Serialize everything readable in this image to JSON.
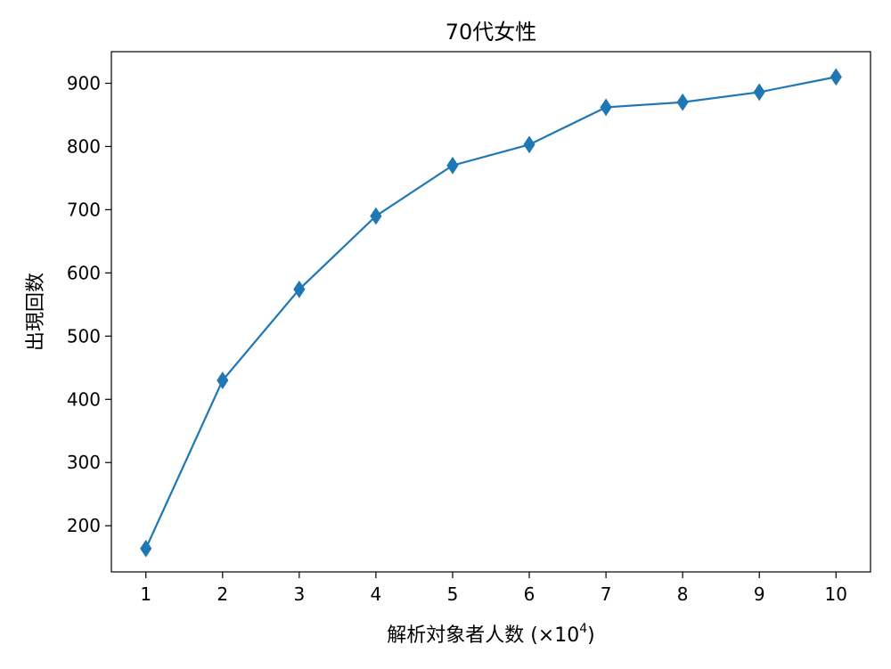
{
  "chart_data": {
    "type": "line",
    "title": "70代女性",
    "xlabel": "解析対象者人数 (×10",
    "xlabel_sup": "4",
    "xlabel_suffix": ")",
    "ylabel": "出現回数",
    "x": [
      1,
      2,
      3,
      4,
      5,
      6,
      7,
      8,
      9,
      10
    ],
    "series": [
      {
        "values": [
          164,
          430,
          574,
          690,
          770,
          803,
          862,
          870,
          886,
          910
        ],
        "color": "#1f77b4",
        "marker": "diamond"
      }
    ],
    "xlim": [
      0.55,
      10.45
    ],
    "ylim": [
      127,
      950
    ],
    "xticks": [
      "1",
      "2",
      "3",
      "4",
      "5",
      "6",
      "7",
      "8",
      "9",
      "10"
    ],
    "yticks": [
      "200",
      "300",
      "400",
      "500",
      "600",
      "700",
      "800",
      "900"
    ],
    "ytick_values": [
      200,
      300,
      400,
      500,
      600,
      700,
      800,
      900
    ],
    "grid": false,
    "legend": false
  }
}
